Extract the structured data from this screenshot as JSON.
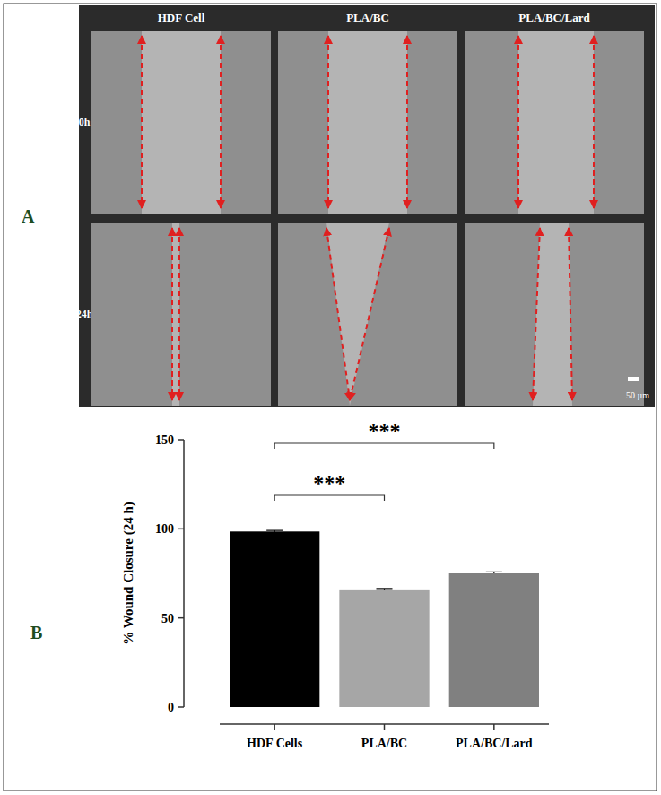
{
  "figure": {
    "panel_a": {
      "letter": "A",
      "columns": [
        "HDF Cell",
        "PLA/BC",
        "PLA/BC/Lard"
      ],
      "rows": [
        "0h",
        "24h"
      ],
      "scale_bar": "50 µm"
    },
    "panel_b": {
      "letter": "B"
    }
  },
  "chart_data": {
    "type": "bar",
    "y_label": "% Wound Closure (24 h)",
    "categories": [
      "HDF Cells",
      "PLA/BC",
      "PLA/BC/Lard"
    ],
    "values": [
      98.5,
      66,
      75
    ],
    "errors": [
      0.6,
      0.5,
      0.8
    ],
    "colors": [
      "#000000",
      "#a6a6a6",
      "#808080"
    ],
    "ylim": [
      0,
      150
    ],
    "yticks": [
      0,
      50,
      100,
      150
    ],
    "grid": false,
    "annotations": [
      {
        "text": "***",
        "from": 0,
        "to": 1
      },
      {
        "text": "***",
        "from": 0,
        "to": 2
      }
    ]
  }
}
